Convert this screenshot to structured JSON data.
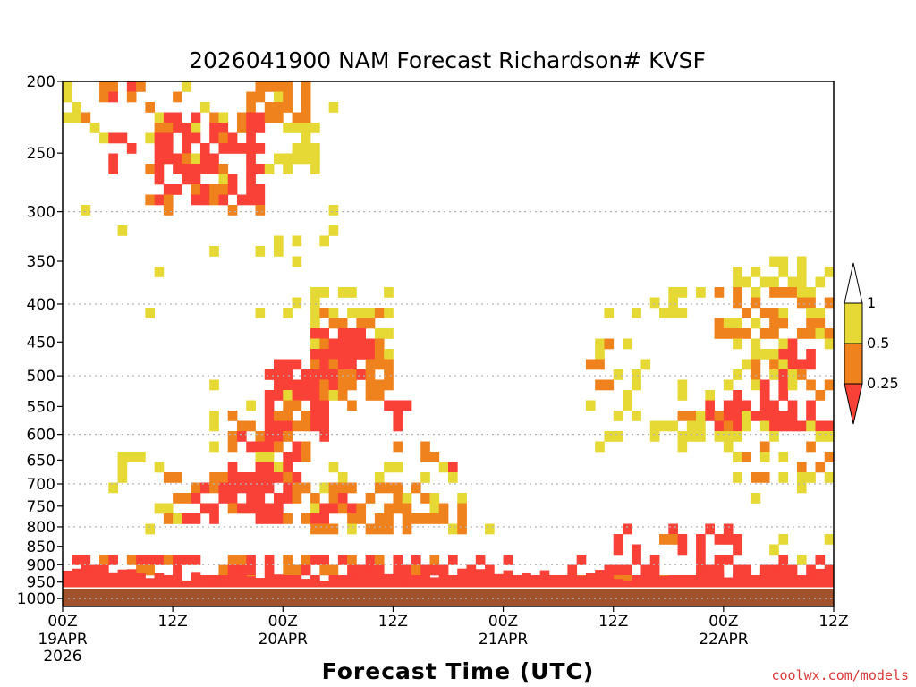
{
  "chart_data": {
    "type": "heatmap",
    "title": "2026041900 NAM Forecast Richardson# KVSF",
    "xlabel": "Forecast Time (UTC)",
    "ylabel": "",
    "credit": "coolwx.com/models",
    "y_axis": {
      "scale": "log-pressure",
      "range_hpa": [
        1025,
        200
      ],
      "tick_labels": [
        "200",
        "250",
        "300",
        "350",
        "400",
        "450",
        "500",
        "550",
        "600",
        "650",
        "700",
        "750",
        "800",
        "850",
        "900",
        "950",
        "1000"
      ],
      "grid_levels": [
        "300",
        "400",
        "500",
        "600",
        "700",
        "800",
        "900",
        "1000"
      ]
    },
    "x_axis": {
      "range_hours": [
        0,
        84
      ],
      "ticks": [
        {
          "hour": 0,
          "label": "00Z",
          "date": "19APR",
          "year": "2026"
        },
        {
          "hour": 12,
          "label": "12Z",
          "date": "",
          "year": ""
        },
        {
          "hour": 24,
          "label": "00Z",
          "date": "20APR",
          "year": ""
        },
        {
          "hour": 36,
          "label": "12Z",
          "date": "",
          "year": ""
        },
        {
          "hour": 48,
          "label": "00Z",
          "date": "21APR",
          "year": ""
        },
        {
          "hour": 60,
          "label": "12Z",
          "date": "",
          "year": ""
        },
        {
          "hour": 72,
          "label": "00Z",
          "date": "22APR",
          "year": ""
        },
        {
          "hour": 84,
          "label": "12Z",
          "date": "",
          "year": ""
        }
      ]
    },
    "legend": {
      "placement": "right",
      "levels": [
        {
          "label": "1",
          "color": "#ffffff",
          "range": "> 1"
        },
        {
          "label": "0.5",
          "color": "#e6d935",
          "range": "0.5 - 1"
        },
        {
          "label": "0.25",
          "color": "#f0821e",
          "range": "0.25 - 0.5"
        },
        {
          "label": "",
          "color": "#fa4137",
          "range": "< 0.25"
        }
      ]
    },
    "ground": {
      "color": "#a0522d",
      "top_hpa": 968,
      "surface_line_color": "#ffffff"
    },
    "colors": {
      "low": "#fa4137",
      "mid": "#f0821e",
      "high": "#e6d935"
    },
    "regions": [
      {
        "level": "high",
        "hours": [
          0,
          84
        ],
        "hpa": [
          968,
          945
        ],
        "density": 0.85
      },
      {
        "level": "mid",
        "hours": [
          0,
          84
        ],
        "hpa": [
          968,
          935
        ],
        "density": 0.6
      },
      {
        "level": "low",
        "hours": [
          0,
          84
        ],
        "hpa": [
          965,
          925
        ],
        "density": 0.8
      },
      {
        "level": "low",
        "hours": [
          1,
          46
        ],
        "hpa": [
          930,
          880
        ],
        "density": 0.45
      },
      {
        "level": "mid",
        "hours": [
          1,
          46
        ],
        "hpa": [
          930,
          860
        ],
        "density": 0.2
      },
      {
        "level": "low",
        "hours": [
          44,
          60
        ],
        "hpa": [
          940,
          860
        ],
        "density": 0.2
      },
      {
        "level": "low",
        "hours": [
          60,
          74
        ],
        "hpa": [
          930,
          790
        ],
        "density": 0.35
      },
      {
        "level": "mid",
        "hours": [
          64,
          72
        ],
        "hpa": [
          850,
          780
        ],
        "density": 0.2
      },
      {
        "level": "low",
        "hours": [
          74,
          84
        ],
        "hpa": [
          930,
          880
        ],
        "density": 0.3
      },
      {
        "level": "high",
        "hours": [
          74,
          84
        ],
        "hpa": [
          900,
          830
        ],
        "density": 0.1
      },
      {
        "level": "high",
        "hours": [
          0,
          26
        ],
        "hpa": [
          210,
          200
        ],
        "density": 0.3
      },
      {
        "level": "mid",
        "hours": [
          1,
          16
        ],
        "hpa": [
          230,
          200
        ],
        "density": 0.25
      },
      {
        "level": "low",
        "hours": [
          5,
          9
        ],
        "hpa": [
          210,
          200
        ],
        "density": 0.6
      },
      {
        "level": "low",
        "hours": [
          5,
          8
        ],
        "hpa": [
          265,
          230
        ],
        "density": 0.5
      },
      {
        "level": "mid",
        "hours": [
          20,
          27
        ],
        "hpa": [
          225,
          200
        ],
        "density": 0.7
      },
      {
        "level": "high",
        "hours": [
          24,
          28
        ],
        "hpa": [
          265,
          225
        ],
        "density": 0.5
      },
      {
        "level": "low",
        "hours": [
          10,
          22
        ],
        "hpa": [
          290,
          220
        ],
        "density": 0.55
      },
      {
        "level": "mid",
        "hours": [
          9,
          22
        ],
        "hpa": [
          310,
          220
        ],
        "density": 0.15
      },
      {
        "level": "high",
        "hours": [
          0,
          30
        ],
        "hpa": [
          330,
          200
        ],
        "density": 0.06
      },
      {
        "level": "high",
        "hours": [
          5,
          26
        ],
        "hpa": [
          420,
          320
        ],
        "density": 0.07
      },
      {
        "level": "low",
        "hours": [
          13,
          25
        ],
        "hpa": [
          800,
          700
        ],
        "density": 0.55
      },
      {
        "level": "mid",
        "hours": [
          9,
          26
        ],
        "hpa": [
          800,
          680
        ],
        "density": 0.3
      },
      {
        "level": "high",
        "hours": [
          5,
          26
        ],
        "hpa": [
          830,
          620
        ],
        "density": 0.12
      },
      {
        "level": "low",
        "hours": [
          18,
          26
        ],
        "hpa": [
          720,
          600
        ],
        "density": 0.45
      },
      {
        "level": "mid",
        "hours": [
          18,
          27
        ],
        "hpa": [
          660,
          560
        ],
        "density": 0.35
      },
      {
        "level": "low",
        "hours": [
          22,
          29
        ],
        "hpa": [
          610,
          480
        ],
        "density": 0.45
      },
      {
        "level": "mid",
        "hours": [
          23,
          30
        ],
        "hpa": [
          600,
          480
        ],
        "density": 0.35
      },
      {
        "level": "high",
        "hours": [
          16,
          32
        ],
        "hpa": [
          600,
          500
        ],
        "density": 0.1
      },
      {
        "level": "low",
        "hours": [
          26,
          33
        ],
        "hpa": [
          530,
          430
        ],
        "density": 0.4
      },
      {
        "level": "mid",
        "hours": [
          27,
          35
        ],
        "hpa": [
          560,
          400
        ],
        "density": 0.4
      },
      {
        "level": "high",
        "hours": [
          27,
          37
        ],
        "hpa": [
          480,
          380
        ],
        "density": 0.3
      },
      {
        "level": "low",
        "hours": [
          30,
          34
        ],
        "hpa": [
          470,
          430
        ],
        "density": 0.5
      },
      {
        "level": "mid",
        "hours": [
          32,
          36
        ],
        "hpa": [
          520,
          480
        ],
        "density": 0.5
      },
      {
        "level": "low",
        "hours": [
          35,
          38
        ],
        "hpa": [
          590,
          530
        ],
        "density": 0.5
      },
      {
        "level": "mid",
        "hours": [
          36,
          42
        ],
        "hpa": [
          650,
          590
        ],
        "density": 0.2
      },
      {
        "level": "low",
        "hours": [
          40,
          43
        ],
        "hpa": [
          680,
          630
        ],
        "density": 0.3
      },
      {
        "level": "mid",
        "hours": [
          26,
          44
        ],
        "hpa": [
          830,
          700
        ],
        "density": 0.35
      },
      {
        "level": "low",
        "hours": [
          27,
          32
        ],
        "hpa": [
          780,
          730
        ],
        "density": 0.35
      },
      {
        "level": "high",
        "hours": [
          26,
          44
        ],
        "hpa": [
          820,
          650
        ],
        "density": 0.15
      },
      {
        "level": "mid",
        "hours": [
          30,
          38
        ],
        "hpa": [
          760,
          680
        ],
        "density": 0.3
      },
      {
        "level": "high",
        "hours": [
          43,
          49
        ],
        "hpa": [
          830,
          780
        ],
        "density": 0.08
      },
      {
        "level": "high",
        "hours": [
          56,
          64
        ],
        "hpa": [
          560,
          400
        ],
        "density": 0.15
      },
      {
        "level": "mid",
        "hours": [
          57,
          60
        ],
        "hpa": [
          520,
          440
        ],
        "density": 0.4
      },
      {
        "level": "high",
        "hours": [
          58,
          68
        ],
        "hpa": [
          640,
          540
        ],
        "density": 0.15
      },
      {
        "level": "high",
        "hours": [
          63,
          71
        ],
        "hpa": [
          420,
          380
        ],
        "density": 0.3
      },
      {
        "level": "high",
        "hours": [
          67,
          72
        ],
        "hpa": [
          560,
          500
        ],
        "density": 0.3
      },
      {
        "level": "mid",
        "hours": [
          67,
          74
        ],
        "hpa": [
          600,
          540
        ],
        "density": 0.35
      },
      {
        "level": "high",
        "hours": [
          67,
          84
        ],
        "hpa": [
          620,
          550
        ],
        "density": 0.45
      },
      {
        "level": "low",
        "hours": [
          70,
          84
        ],
        "hpa": [
          590,
          540
        ],
        "density": 0.45
      },
      {
        "level": "low",
        "hours": [
          73,
          79
        ],
        "hpa": [
          560,
          510
        ],
        "density": 0.5
      },
      {
        "level": "mid",
        "hours": [
          75,
          84
        ],
        "hpa": [
          540,
          470
        ],
        "density": 0.35
      },
      {
        "level": "high",
        "hours": [
          72,
          84
        ],
        "hpa": [
          520,
          360
        ],
        "density": 0.35
      },
      {
        "level": "mid",
        "hours": [
          71,
          84
        ],
        "hpa": [
          440,
          380
        ],
        "density": 0.35
      },
      {
        "level": "low",
        "hours": [
          78,
          84
        ],
        "hpa": [
          510,
          440
        ],
        "density": 0.3
      },
      {
        "level": "high",
        "hours": [
          73,
          82
        ],
        "hpa": [
          380,
          350
        ],
        "density": 0.25
      },
      {
        "level": "mid",
        "hours": [
          74,
          84
        ],
        "hpa": [
          700,
          620
        ],
        "density": 0.2
      },
      {
        "level": "high",
        "hours": [
          72,
          84
        ],
        "hpa": [
          720,
          600
        ],
        "density": 0.15
      },
      {
        "level": "high",
        "hours": [
          68,
          76
        ],
        "hpa": [
          780,
          730
        ],
        "density": 0.15
      }
    ]
  }
}
